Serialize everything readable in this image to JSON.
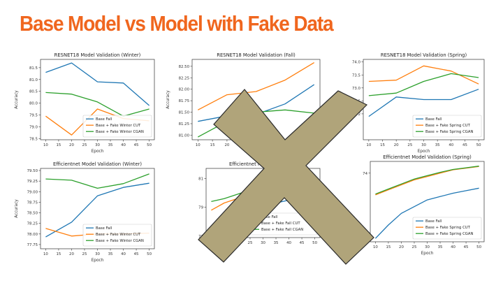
{
  "slide": {
    "title": "Base Model vs Model with Fake Data",
    "title_color": "#f0661e"
  },
  "overlay": {
    "icon": "x-cross-icon",
    "fill": "#b0a47a",
    "stroke": "#2a2a2a"
  },
  "chart_data": [
    {
      "type": "line",
      "title": "RESNET18 Model Validation (Winter)",
      "xlabel": "Epoch",
      "ylabel": "Accuracy",
      "x": [
        10,
        20,
        30,
        40,
        50
      ],
      "xlim": [
        8,
        52
      ],
      "ylim": [
        78.45,
        81.85
      ],
      "xticks": [
        10,
        15,
        20,
        25,
        30,
        35,
        40,
        45,
        50
      ],
      "yticks": [
        78.5,
        79.0,
        79.5,
        80.0,
        80.5,
        81.0,
        81.5
      ],
      "ytick_labels": [
        "78.5",
        "79.0",
        "79.5",
        "80.0",
        "80.5",
        "81.0",
        "81.5"
      ],
      "legend": "lower-right",
      "series": [
        {
          "name": "Base Fall",
          "color": "#1f77b4",
          "values": [
            81.3,
            81.7,
            80.9,
            80.85,
            79.9
          ]
        },
        {
          "name": "Base + Fake Winter CUT",
          "color": "#ff7f0e",
          "values": [
            79.45,
            78.65,
            79.75,
            79.35,
            79.25
          ]
        },
        {
          "name": "Base + Fake Winter CGAN",
          "color": "#2ca02c",
          "values": [
            80.45,
            80.38,
            80.05,
            79.45,
            79.75
          ]
        }
      ]
    },
    {
      "type": "line",
      "title": "RESNET18 Model Validation (Fall)",
      "xlabel": "Epoch",
      "ylabel": "Accuracy",
      "x": [
        10,
        20,
        30,
        40,
        50
      ],
      "xlim": [
        8,
        52
      ],
      "ylim": [
        80.9,
        82.65
      ],
      "xticks": [
        10,
        15,
        20,
        25,
        30,
        35,
        40,
        45,
        50
      ],
      "yticks": [
        81.0,
        81.25,
        81.5,
        81.75,
        82.0,
        82.25,
        82.5
      ],
      "ytick_labels": [
        "81.00",
        "81.25",
        "81.50",
        "81.75",
        "82.00",
        "82.25",
        "82.50"
      ],
      "legend": "lower-right",
      "series": [
        {
          "name": "",
          "color": "#1f77b4",
          "values": [
            81.3,
            81.42,
            81.45,
            81.68,
            82.1
          ]
        },
        {
          "name": "",
          "color": "#ff7f0e",
          "values": [
            81.55,
            81.88,
            81.95,
            82.2,
            82.58
          ]
        },
        {
          "name": "",
          "color": "#2ca02c",
          "values": [
            80.96,
            81.3,
            81.5,
            81.55,
            81.48
          ]
        }
      ]
    },
    {
      "type": "line",
      "title": "RESNET18 Model Validation (Spring)",
      "xlabel": "Epoch",
      "ylabel": "Accuracy",
      "x": [
        10,
        20,
        30,
        40,
        50
      ],
      "xlim": [
        8,
        52
      ],
      "ylim": [
        71.0,
        74.1
      ],
      "xticks": [
        10,
        15,
        20,
        25,
        30,
        35,
        40,
        45,
        50
      ],
      "yticks": [
        72.0,
        72.5,
        73.0,
        73.5,
        74.0
      ],
      "ytick_labels": [
        "72",
        "72.5",
        "73.0",
        "73.5",
        "74.0"
      ],
      "legend": "lower-right",
      "series": [
        {
          "name": "Base Fall",
          "color": "#1f77b4",
          "values": [
            71.9,
            72.65,
            72.55,
            72.55,
            72.95
          ]
        },
        {
          "name": "Base + Fake Spring CUT",
          "color": "#ff7f0e",
          "values": [
            73.25,
            73.3,
            73.85,
            73.65,
            73.15
          ]
        },
        {
          "name": "Base + Fake Spring CGAN",
          "color": "#2ca02c",
          "values": [
            72.7,
            72.8,
            73.25,
            73.55,
            73.4
          ]
        }
      ]
    },
    {
      "type": "line",
      "title": "Efficientnet Model Validation (Winter)",
      "xlabel": "Epoch",
      "ylabel": "Accuracy",
      "x": [
        10,
        20,
        30,
        40,
        50
      ],
      "xlim": [
        8,
        52
      ],
      "ylim": [
        77.65,
        79.55
      ],
      "xticks": [
        10,
        15,
        20,
        25,
        30,
        35,
        40,
        45,
        50
      ],
      "yticks": [
        77.75,
        78.0,
        78.25,
        78.5,
        78.75,
        79.0,
        79.25,
        79.5
      ],
      "ytick_labels": [
        "77.75",
        "78.00",
        "78.25",
        "78.50",
        "78.75",
        "79.00",
        "79.25",
        "79.50"
      ],
      "legend": "lower-right",
      "series": [
        {
          "name": "Base Fall",
          "color": "#1f77b4",
          "values": [
            77.93,
            78.28,
            78.9,
            79.1,
            79.2
          ]
        },
        {
          "name": "Base + Fake Winter CUT",
          "color": "#ff7f0e",
          "values": [
            78.13,
            77.95,
            78.0,
            78.0,
            78.02
          ]
        },
        {
          "name": "Base + Fake Winter CGAN",
          "color": "#2ca02c",
          "values": [
            79.3,
            79.27,
            79.08,
            79.19,
            79.42
          ]
        }
      ]
    },
    {
      "type": "line",
      "title": "Efficientnet Model Validation",
      "xlabel": "",
      "ylabel": "",
      "x": [
        10,
        15,
        20,
        25,
        30,
        35,
        40,
        45,
        50
      ],
      "xlim": [
        8,
        52
      ],
      "ylim": [
        76.9,
        81.7
      ],
      "xticks": [
        10,
        15,
        20,
        25,
        30,
        35,
        40,
        45,
        50
      ],
      "yticks": [
        77,
        79,
        81
      ],
      "ytick_labels": [
        "77",
        "79",
        "81"
      ],
      "legend": "lower-right",
      "series": [
        {
          "name": "Base Fall",
          "color": "#1f77b4",
          "values": [
            77.1,
            77.6,
            78.2,
            78.6,
            79.0,
            79.3,
            79.5,
            79.7,
            79.9
          ]
        },
        {
          "name": "Base + Fake Fall CUT",
          "color": "#ff7f0e",
          "values": [
            78.8,
            79.3,
            79.6,
            79.9,
            80.1,
            80.3,
            80.4,
            80.5,
            80.6
          ]
        },
        {
          "name": "Base + Fake Fall CGAN",
          "color": "#2ca02c",
          "values": [
            79.4,
            79.6,
            79.9,
            80.2,
            80.4,
            80.5,
            80.6,
            80.7,
            80.8
          ]
        }
      ]
    },
    {
      "type": "line",
      "title": "Efficientnet Model Validation (Spring)",
      "xlabel": "Epoch",
      "ylabel": "",
      "x": [
        10,
        15,
        20,
        25,
        30,
        35,
        40,
        45,
        50
      ],
      "xlim": [
        8,
        52
      ],
      "ylim": [
        69.9,
        74.7
      ],
      "xticks": [
        10,
        15,
        20,
        25,
        30,
        35,
        40,
        45,
        50
      ],
      "yticks": [
        74
      ],
      "ytick_labels": [
        "74"
      ],
      "legend": "lower-right",
      "series": [
        {
          "name": "Base Fall",
          "color": "#1f77b4",
          "values": [
            70.1,
            70.9,
            71.6,
            72.0,
            72.4,
            72.6,
            72.8,
            72.95,
            73.1
          ]
        },
        {
          "name": "Base + Fake Spring CUT",
          "color": "#ff7f0e",
          "values": [
            72.7,
            73.0,
            73.3,
            73.6,
            73.8,
            74.0,
            74.2,
            74.3,
            74.4
          ]
        },
        {
          "name": "Base + Fake Spring CGAN",
          "color": "#2ca02c",
          "values": [
            72.75,
            73.05,
            73.35,
            73.65,
            73.85,
            74.05,
            74.22,
            74.32,
            74.42
          ]
        }
      ]
    }
  ]
}
